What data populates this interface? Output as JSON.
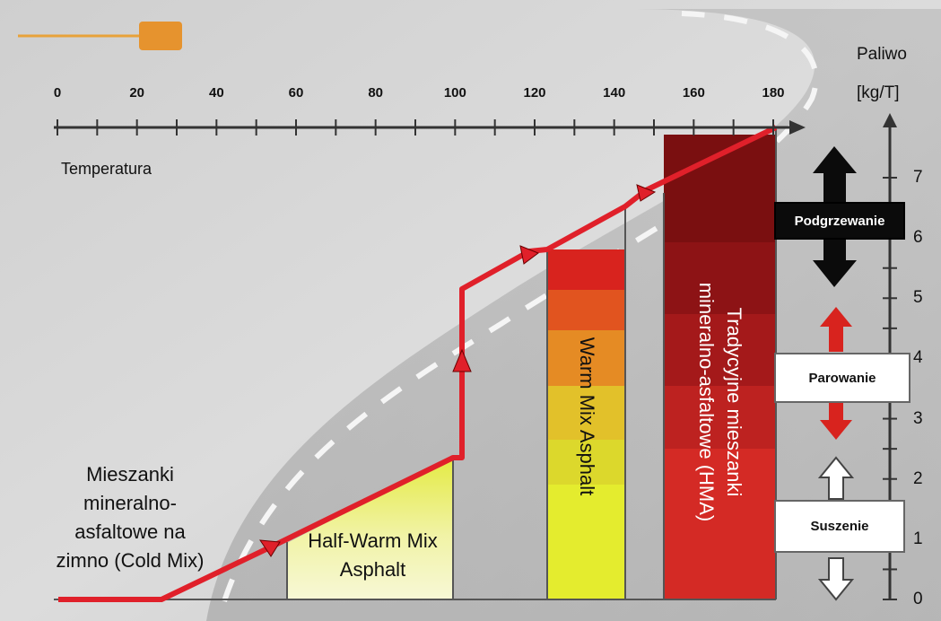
{
  "axis_top": {
    "label": "Temperatura",
    "ticks": [
      "0",
      "20",
      "40",
      "60",
      "80",
      "100",
      "120",
      "140",
      "160",
      "180"
    ]
  },
  "axis_right": {
    "title_line1": "Paliwo",
    "title_line2": "[kg/T]",
    "ticks": [
      "0",
      "1",
      "2",
      "3",
      "4",
      "5",
      "6",
      "7"
    ]
  },
  "zones": {
    "cold_mix": [
      "Mieszanki",
      "mineralno-",
      "asfaltowe na",
      "zimno (Cold Mix)"
    ],
    "half_warm": [
      "Half-Warm Mix",
      "Asphalt"
    ],
    "warm_mix": "Warm Mix Asphalt",
    "hma": [
      "Tradycyjne mieszanki",
      "mineralno-asfaltowe (HMA)"
    ]
  },
  "stages": {
    "heating": "Podgrzewanie",
    "evaporation": "Parowanie",
    "drying": "Suszenie"
  },
  "colors": {
    "red_line": "#e0202a",
    "warm_top": "#d8231e",
    "warm_bottom": "#e9ef2a",
    "hma_top": "#7a0f10",
    "hma_bottom": "#d42a25",
    "half_warm": "#eef08a",
    "stage_black": "#0b0b0b"
  }
}
